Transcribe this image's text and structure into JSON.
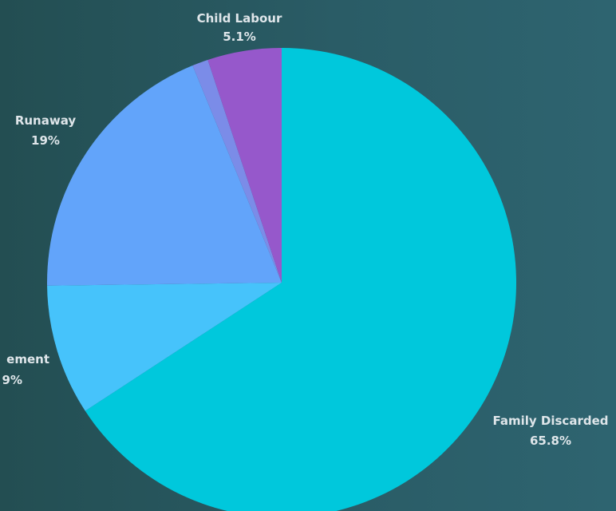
{
  "chart_data": {
    "type": "pie",
    "slices": [
      {
        "name": "Family Discarded",
        "value": 65.8,
        "display": "65.8%",
        "color": "#00c8dc"
      },
      {
        "name": "Displacement",
        "display_name": "ement",
        "value": 9.0,
        "display": "9%",
        "color": "#46c3fb"
      },
      {
        "name": "Runaway",
        "value": 19.0,
        "display": "19%",
        "color": "#62a4fa"
      },
      {
        "name": "",
        "value": 1.1,
        "display": "",
        "color": "#7b8ce8"
      },
      {
        "name": "Child Labour",
        "value": 5.1,
        "display": "5.1%",
        "color": "#9658cb"
      }
    ],
    "start_angle_deg": 0,
    "direction": "clockwise",
    "legend": "none",
    "data_labels": "outside"
  }
}
